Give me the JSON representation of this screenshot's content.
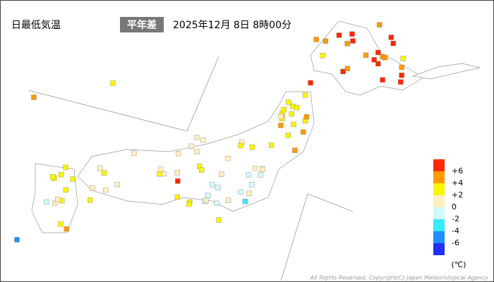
{
  "header": {
    "title": "日最低気温",
    "badge": "平年差",
    "timestamp": "2025年12月 8日 8時00分"
  },
  "stations": {
    "values": [
      7,
      6,
      5,
      8,
      4,
      6,
      7,
      5,
      4,
      6,
      7,
      3,
      5,
      6,
      8,
      4,
      6,
      5,
      7,
      3,
      6,
      4,
      5,
      7,
      3,
      2.5,
      4,
      3,
      2,
      3.5,
      4,
      2.5,
      3,
      5,
      2,
      3,
      4,
      2.5,
      3,
      1.5,
      1,
      2,
      0.5,
      1.5,
      2.5,
      0.5,
      1,
      3,
      0.5,
      1.5,
      2,
      0.5,
      1,
      2.5,
      -1,
      -0.5,
      -1.5,
      0.5,
      -1,
      -0.5,
      -2.5,
      0.5,
      -1,
      -1.5,
      0.5,
      -0.5,
      -1,
      1,
      1.5,
      2,
      1,
      0.5,
      2.5,
      3,
      1,
      0.5,
      1.5,
      2,
      6,
      1,
      0.5,
      2,
      1.5,
      3,
      3,
      2,
      2.5,
      1.5,
      4,
      2,
      3,
      2.5,
      1,
      3.5,
      2,
      -1,
      3,
      4,
      2,
      -5
    ]
  },
  "legend": {
    "colors": [
      "#ff2800",
      "#ff9900",
      "#faf500",
      "#ffefc0",
      "#d2fafa",
      "#38ecff",
      "#1e90ff",
      "#2030ff"
    ],
    "ticks": [
      {
        "value": 6,
        "label": "+6"
      },
      {
        "value": 4,
        "label": "+4"
      },
      {
        "value": 2,
        "label": "+2"
      },
      0,
      -2,
      -4,
      -6
    ],
    "unit": "(℃)"
  },
  "footer": {
    "copyright": "All Rights Reserved, Copyright(C) Japan Meteorological Agency"
  }
}
